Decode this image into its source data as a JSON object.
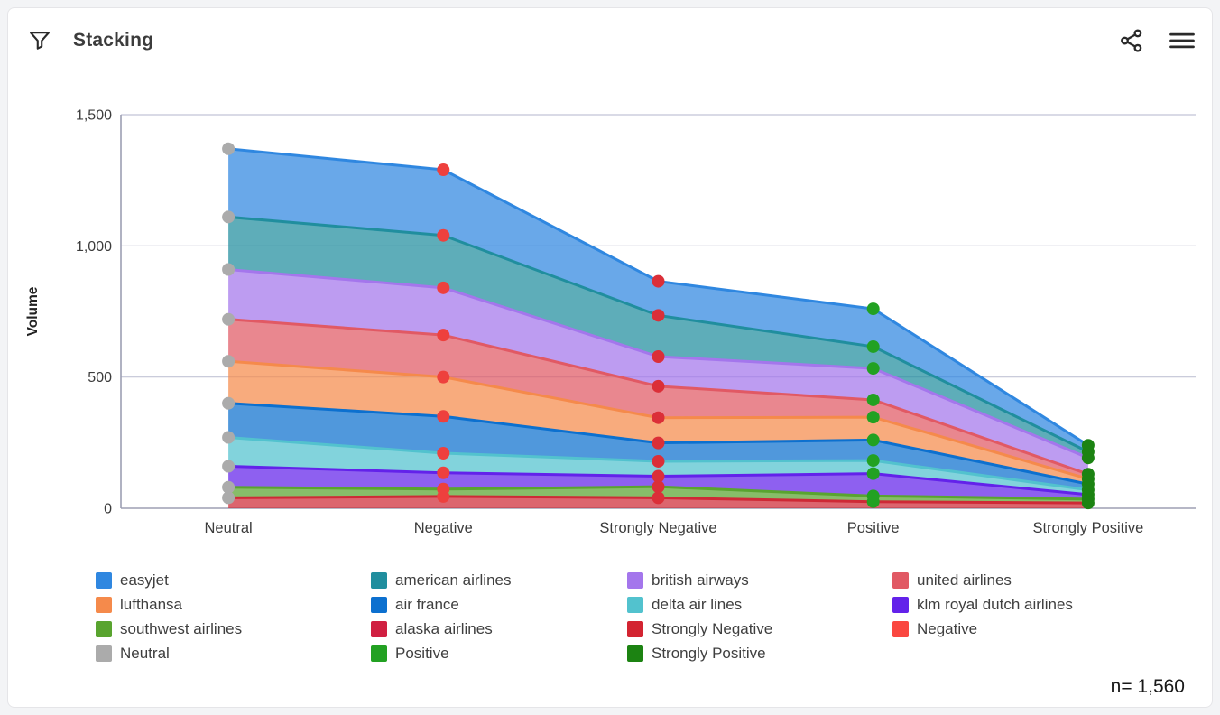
{
  "header": {
    "title": "Stacking",
    "icons": {
      "filter": "funnel-icon",
      "share": "share-icon",
      "menu": "hamburger-icon"
    }
  },
  "chart_data": {
    "type": "area",
    "stacked": true,
    "ylabel": "Volume",
    "xlabel": "",
    "ylim": [
      0,
      1500
    ],
    "yticks": [
      0,
      500,
      1000,
      1500
    ],
    "grid": "horizontal",
    "legend_position": "bottom",
    "categories": [
      "Neutral",
      "Negative",
      "Strongly Negative",
      "Positive",
      "Strongly Positive"
    ],
    "stack_order": "bottom-to-top",
    "series": [
      {
        "name": "alaska airlines",
        "color": "#CE2936",
        "values": [
          40,
          45,
          40,
          25,
          20
        ]
      },
      {
        "name": "southwest airlines",
        "color": "#59A42F",
        "values": [
          40,
          28,
          42,
          22,
          15
        ]
      },
      {
        "name": "klm royal dutch airlines",
        "color": "#6322EA",
        "values": [
          80,
          62,
          40,
          85,
          17
        ]
      },
      {
        "name": "delta air lines",
        "color": "#52C2CE",
        "values": [
          110,
          75,
          57,
          50,
          18
        ]
      },
      {
        "name": "air france",
        "color": "#0C70CF",
        "values": [
          130,
          140,
          70,
          78,
          22
        ]
      },
      {
        "name": "lufthansa",
        "color": "#F58A4B",
        "values": [
          160,
          150,
          96,
          87,
          20
        ]
      },
      {
        "name": "united airlines",
        "color": "#E15964",
        "values": [
          160,
          160,
          120,
          66,
          18
        ]
      },
      {
        "name": "british airways",
        "color": "#A476EC",
        "values": [
          190,
          180,
          113,
          120,
          62
        ]
      },
      {
        "name": "american airlines",
        "color": "#208E9E",
        "values": [
          200,
          200,
          157,
          83,
          23
        ]
      },
      {
        "name": "easyjet",
        "color": "#2F87E0",
        "values": [
          260,
          250,
          130,
          144,
          25
        ]
      }
    ],
    "stack_totals": [
      1370,
      1290,
      865,
      760,
      240
    ],
    "point_colors_by_category": {
      "Neutral": "#ABABAB",
      "Negative": "#EE403D",
      "Strongly Negative": "#DB2F38",
      "Positive": "#22A122",
      "Strongly Positive": "#1C8312"
    },
    "axis_color": "#9D9FB3",
    "grid_color": "#C2C4D6",
    "tick_label_color": "#3C3C3C"
  },
  "legend": {
    "columns": [
      [
        {
          "label": "easyjet",
          "color": "#2F87E0"
        },
        {
          "label": "lufthansa",
          "color": "#F58A4B"
        },
        {
          "label": "southwest airlines",
          "color": "#59A42F"
        },
        {
          "label": "Neutral",
          "color": "#ABABAB"
        }
      ],
      [
        {
          "label": "american airlines",
          "color": "#208E9E"
        },
        {
          "label": "air france",
          "color": "#0C70CF"
        },
        {
          "label": "alaska airlines",
          "color": "#D01F41"
        },
        {
          "label": "Positive",
          "color": "#22A122"
        }
      ],
      [
        {
          "label": "british airways",
          "color": "#A476EC"
        },
        {
          "label": "delta air lines",
          "color": "#52C2CE"
        },
        {
          "label": "Strongly Negative",
          "color": "#D32431"
        },
        {
          "label": "Strongly Positive",
          "color": "#1C8312"
        }
      ],
      [
        {
          "label": "united airlines",
          "color": "#E15964"
        },
        {
          "label": "klm royal dutch airlines",
          "color": "#6322EA"
        },
        {
          "label": "Negative",
          "color": "#FA4740"
        }
      ]
    ],
    "column_offsets": [
      0,
      305,
      589,
      883
    ]
  },
  "footer": {
    "n_label": "n= 1,560"
  }
}
